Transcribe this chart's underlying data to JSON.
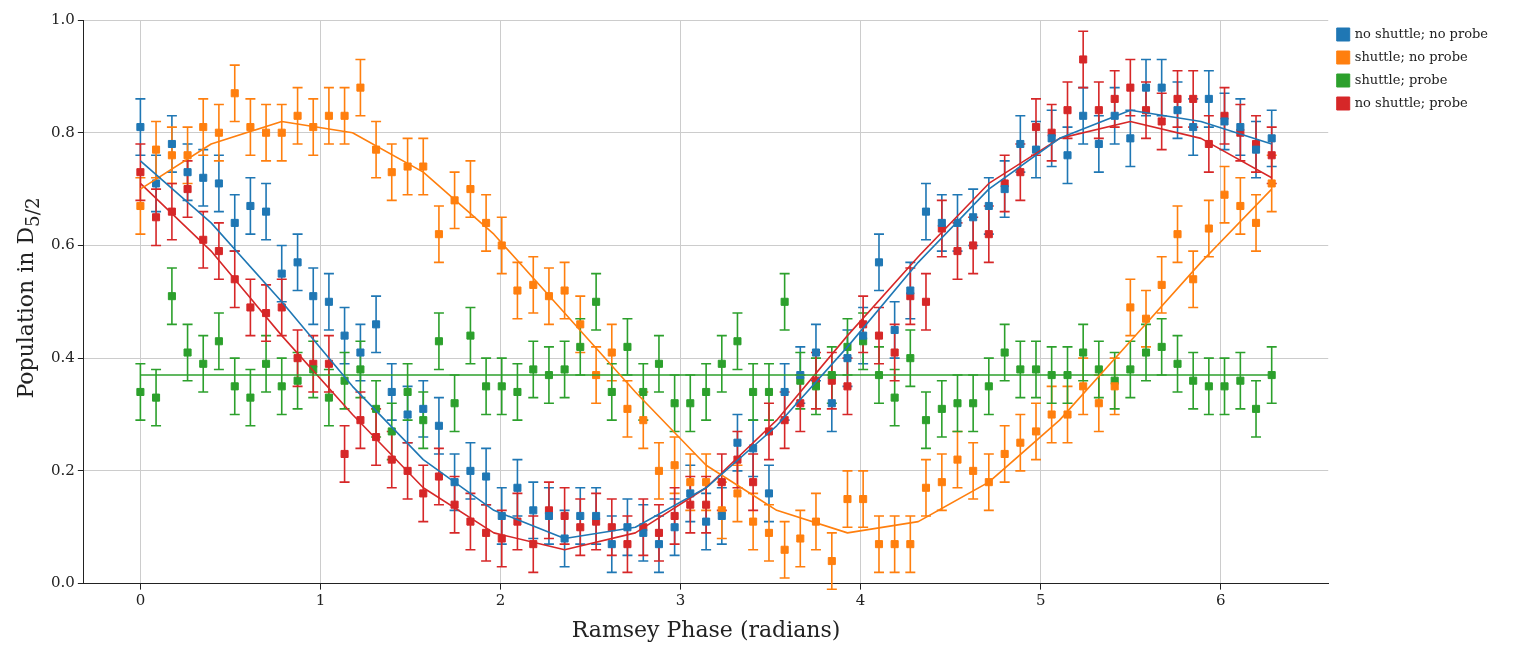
{
  "chart_data": {
    "type": "scatter",
    "xlabel": "Ramsey Phase (radians)",
    "ylabel": "Population in D$_{5/2}$",
    "x": [
      0,
      0.087,
      0.175,
      0.262,
      0.349,
      0.436,
      0.524,
      0.611,
      0.698,
      0.785,
      0.873,
      0.96,
      1.047,
      1.134,
      1.222,
      1.309,
      1.396,
      1.484,
      1.571,
      1.658,
      1.745,
      1.833,
      1.92,
      2.007,
      2.094,
      2.182,
      2.269,
      2.356,
      2.443,
      2.531,
      2.618,
      2.705,
      2.793,
      2.88,
      2.967,
      3.054,
      3.142,
      3.229,
      3.316,
      3.403,
      3.491,
      3.578,
      3.665,
      3.752,
      3.84,
      3.927,
      4.014,
      4.102,
      4.189,
      4.276,
      4.363,
      4.451,
      4.538,
      4.625,
      4.712,
      4.8,
      4.887,
      4.974,
      5.061,
      5.149,
      5.236,
      5.323,
      5.411,
      5.498,
      5.585,
      5.672,
      5.76,
      5.847,
      5.934,
      6.021,
      6.109,
      6.196,
      6.283
    ],
    "xlim": [
      -0.314,
      6.597
    ],
    "xticks": [
      0,
      1,
      2,
      3,
      4,
      5,
      6
    ],
    "ylim": [
      0,
      1
    ],
    "yticks": [
      {
        "value": 0,
        "label": "0.0"
      },
      0.2,
      0.4,
      0.6,
      0.8,
      {
        "value": 1,
        "label": "1.0"
      }
    ],
    "grid": true,
    "legend": "top right",
    "marker": "square",
    "series": [
      {
        "name": "no shuttle; no probe",
        "type": "scatter",
        "color": "#1f77b4",
        "values": [
          0.81,
          0.71,
          0.78,
          0.73,
          0.72,
          0.71,
          0.64,
          0.67,
          0.66,
          0.55,
          0.57,
          0.51,
          0.5,
          0.44,
          0.41,
          0.46,
          0.34,
          0.3,
          0.31,
          0.28,
          0.18,
          0.2,
          0.19,
          0.12,
          0.17,
          0.13,
          0.12,
          0.08,
          0.12,
          0.12,
          0.07,
          0.1,
          0.09,
          0.07,
          0.1,
          0.16,
          0.11,
          0.12,
          0.25,
          0.24,
          0.16,
          0.34,
          0.37,
          0.41,
          0.32,
          0.4,
          0.44,
          0.57,
          0.45,
          0.52,
          0.66,
          0.64,
          0.64,
          0.65,
          0.67,
          0.7,
          0.78,
          0.77,
          0.79,
          0.76,
          0.83,
          0.78,
          0.83,
          0.79,
          0.88,
          0.88,
          0.84,
          0.81,
          0.86,
          0.82,
          0.81,
          0.77,
          0.79
        ],
        "errors": [
          0.05,
          0.05,
          0.05,
          0.05,
          0.05,
          0.05,
          0.05,
          0.05,
          0.05,
          0.05,
          0.05,
          0.05,
          0.05,
          0.05,
          0.05,
          0.05,
          0.05,
          0.05,
          0.05,
          0.05,
          0.05,
          0.05,
          0.05,
          0.05,
          0.05,
          0.05,
          0.05,
          0.05,
          0.05,
          0.05,
          0.05,
          0.05,
          0.05,
          0.05,
          0.05,
          0.05,
          0.05,
          0.05,
          0.05,
          0.05,
          0.05,
          0.05,
          0.05,
          0.05,
          0.05,
          0.05,
          0.05,
          0.05,
          0.05,
          0.05,
          0.05,
          0.05,
          0.05,
          0.05,
          0.05,
          0.05,
          0.05,
          0.05,
          0.05,
          0.05,
          0.05,
          0.05,
          0.05,
          0.05,
          0.05,
          0.05,
          0.05,
          0.05,
          0.05,
          0.05,
          0.05,
          0.05,
          0.05
        ]
      },
      {
        "name": "shuttle; no probe",
        "type": "scatter",
        "color": "#ff7f0e",
        "values": [
          0.67,
          0.77,
          0.76,
          0.76,
          0.81,
          0.8,
          0.87,
          0.81,
          0.8,
          0.8,
          0.83,
          0.81,
          0.83,
          0.83,
          0.88,
          0.77,
          0.73,
          0.74,
          0.74,
          0.62,
          0.68,
          0.7,
          0.64,
          0.6,
          0.52,
          0.53,
          0.51,
          0.52,
          0.46,
          0.37,
          0.41,
          0.31,
          0.29,
          0.2,
          0.21,
          0.18,
          0.18,
          0.13,
          0.16,
          0.11,
          0.09,
          0.06,
          0.08,
          0.11,
          0.04,
          0.15,
          0.15,
          0.07,
          0.07,
          0.07,
          0.17,
          0.18,
          0.22,
          0.2,
          0.18,
          0.23,
          0.25,
          0.27,
          0.3,
          0.3,
          0.35,
          0.32,
          0.35,
          0.49,
          0.47,
          0.53,
          0.62,
          0.54,
          0.63,
          0.69,
          0.67,
          0.64,
          0.71
        ],
        "errors": [
          0.05,
          0.05,
          0.05,
          0.05,
          0.05,
          0.05,
          0.05,
          0.05,
          0.05,
          0.05,
          0.05,
          0.05,
          0.05,
          0.05,
          0.05,
          0.05,
          0.05,
          0.05,
          0.05,
          0.05,
          0.05,
          0.05,
          0.05,
          0.05,
          0.05,
          0.05,
          0.05,
          0.05,
          0.05,
          0.05,
          0.05,
          0.05,
          0.05,
          0.05,
          0.05,
          0.05,
          0.05,
          0.05,
          0.05,
          0.05,
          0.05,
          0.05,
          0.05,
          0.05,
          0.05,
          0.05,
          0.05,
          0.05,
          0.05,
          0.05,
          0.05,
          0.05,
          0.05,
          0.05,
          0.05,
          0.05,
          0.05,
          0.05,
          0.05,
          0.05,
          0.05,
          0.05,
          0.05,
          0.05,
          0.05,
          0.05,
          0.05,
          0.05,
          0.05,
          0.05,
          0.05,
          0.05,
          0.05
        ]
      },
      {
        "name": "shuttle; probe",
        "type": "scatter",
        "color": "#2ca02c",
        "values": [
          0.34,
          0.33,
          0.51,
          0.41,
          0.39,
          0.43,
          0.35,
          0.33,
          0.39,
          0.35,
          0.36,
          0.38,
          0.33,
          0.36,
          0.38,
          0.31,
          0.27,
          0.34,
          0.29,
          0.43,
          0.32,
          0.44,
          0.35,
          0.35,
          0.34,
          0.38,
          0.37,
          0.38,
          0.42,
          0.5,
          0.34,
          0.42,
          0.34,
          0.39,
          0.32,
          0.32,
          0.34,
          0.39,
          0.43,
          0.34,
          0.34,
          0.5,
          0.36,
          0.35,
          0.37,
          0.42,
          0.43,
          0.37,
          0.33,
          0.4,
          0.29,
          0.31,
          0.32,
          0.32,
          0.35,
          0.41,
          0.38,
          0.38,
          0.37,
          0.37,
          0.41,
          0.38,
          0.36,
          0.38,
          0.41,
          0.42,
          0.39,
          0.36,
          0.35,
          0.35,
          0.36,
          0.31,
          0.37
        ],
        "errors": [
          0.05,
          0.05,
          0.05,
          0.05,
          0.05,
          0.05,
          0.05,
          0.05,
          0.05,
          0.05,
          0.05,
          0.05,
          0.05,
          0.05,
          0.05,
          0.05,
          0.05,
          0.05,
          0.05,
          0.05,
          0.05,
          0.05,
          0.05,
          0.05,
          0.05,
          0.05,
          0.05,
          0.05,
          0.05,
          0.05,
          0.05,
          0.05,
          0.05,
          0.05,
          0.05,
          0.05,
          0.05,
          0.05,
          0.05,
          0.05,
          0.05,
          0.05,
          0.05,
          0.05,
          0.05,
          0.05,
          0.05,
          0.05,
          0.05,
          0.05,
          0.05,
          0.05,
          0.05,
          0.05,
          0.05,
          0.05,
          0.05,
          0.05,
          0.05,
          0.05,
          0.05,
          0.05,
          0.05,
          0.05,
          0.05,
          0.05,
          0.05,
          0.05,
          0.05,
          0.05,
          0.05,
          0.05,
          0.05
        ]
      },
      {
        "name": "no shuttle; probe",
        "type": "scatter",
        "color": "#d62728",
        "values": [
          0.73,
          0.65,
          0.66,
          0.7,
          0.61,
          0.59,
          0.54,
          0.49,
          0.48,
          0.49,
          0.4,
          0.39,
          0.39,
          0.23,
          0.29,
          0.26,
          0.22,
          0.2,
          0.16,
          0.19,
          0.14,
          0.11,
          0.09,
          0.08,
          0.11,
          0.07,
          0.13,
          0.12,
          0.1,
          0.11,
          0.1,
          0.07,
          0.1,
          0.09,
          0.12,
          0.14,
          0.14,
          0.18,
          0.22,
          0.18,
          0.27,
          0.29,
          0.32,
          0.36,
          0.36,
          0.35,
          0.46,
          0.44,
          0.41,
          0.51,
          0.5,
          0.63,
          0.59,
          0.6,
          0.62,
          0.71,
          0.73,
          0.81,
          0.8,
          0.84,
          0.93,
          0.84,
          0.86,
          0.88,
          0.84,
          0.82,
          0.86,
          0.86,
          0.78,
          0.83,
          0.8,
          0.78,
          0.76
        ],
        "errors": [
          0.05,
          0.05,
          0.05,
          0.05,
          0.05,
          0.05,
          0.05,
          0.05,
          0.05,
          0.05,
          0.05,
          0.05,
          0.05,
          0.05,
          0.05,
          0.05,
          0.05,
          0.05,
          0.05,
          0.05,
          0.05,
          0.05,
          0.05,
          0.05,
          0.05,
          0.05,
          0.05,
          0.05,
          0.05,
          0.05,
          0.05,
          0.05,
          0.05,
          0.05,
          0.05,
          0.05,
          0.05,
          0.05,
          0.05,
          0.05,
          0.05,
          0.05,
          0.05,
          0.05,
          0.05,
          0.05,
          0.05,
          0.05,
          0.05,
          0.05,
          0.05,
          0.05,
          0.05,
          0.05,
          0.05,
          0.05,
          0.05,
          0.05,
          0.05,
          0.05,
          0.05,
          0.05,
          0.05,
          0.05,
          0.05,
          0.05,
          0.05,
          0.05,
          0.05,
          0.05,
          0.05,
          0.05,
          0.05
        ]
      },
      {
        "type": "line",
        "color": "#1f77b4",
        "marker": "none",
        "x": [
          0,
          0.393,
          0.785,
          1.178,
          1.571,
          1.963,
          2.356,
          2.749,
          3.142,
          3.534,
          3.927,
          4.32,
          4.712,
          5.105,
          5.498,
          5.89,
          6.283
        ],
        "values": [
          0.75,
          0.64,
          0.5,
          0.35,
          0.22,
          0.13,
          0.08,
          0.1,
          0.17,
          0.28,
          0.42,
          0.57,
          0.7,
          0.79,
          0.84,
          0.82,
          0.78
        ]
      },
      {
        "type": "line",
        "color": "#ff7f0e",
        "marker": "none",
        "x": [
          0,
          0.393,
          0.785,
          1.178,
          1.571,
          1.963,
          2.356,
          2.749,
          3.142,
          3.534,
          3.927,
          4.32,
          4.712,
          5.105,
          5.498,
          5.89,
          6.283
        ],
        "values": [
          0.7,
          0.78,
          0.82,
          0.8,
          0.73,
          0.62,
          0.48,
          0.34,
          0.21,
          0.13,
          0.09,
          0.11,
          0.18,
          0.29,
          0.43,
          0.57,
          0.7
        ]
      },
      {
        "type": "line",
        "color": "#2ca02c",
        "marker": "none",
        "x": [
          0,
          6.283
        ],
        "values": [
          0.37,
          0.37
        ]
      },
      {
        "type": "line",
        "color": "#d62728",
        "marker": "none",
        "x": [
          0,
          0.393,
          0.785,
          1.178,
          1.571,
          1.963,
          2.356,
          2.749,
          3.142,
          3.534,
          3.927,
          4.32,
          4.712,
          5.105,
          5.498,
          5.89,
          6.283
        ],
        "values": [
          0.71,
          0.59,
          0.44,
          0.3,
          0.17,
          0.09,
          0.06,
          0.09,
          0.17,
          0.29,
          0.44,
          0.58,
          0.71,
          0.79,
          0.82,
          0.79,
          0.72
        ]
      }
    ]
  }
}
